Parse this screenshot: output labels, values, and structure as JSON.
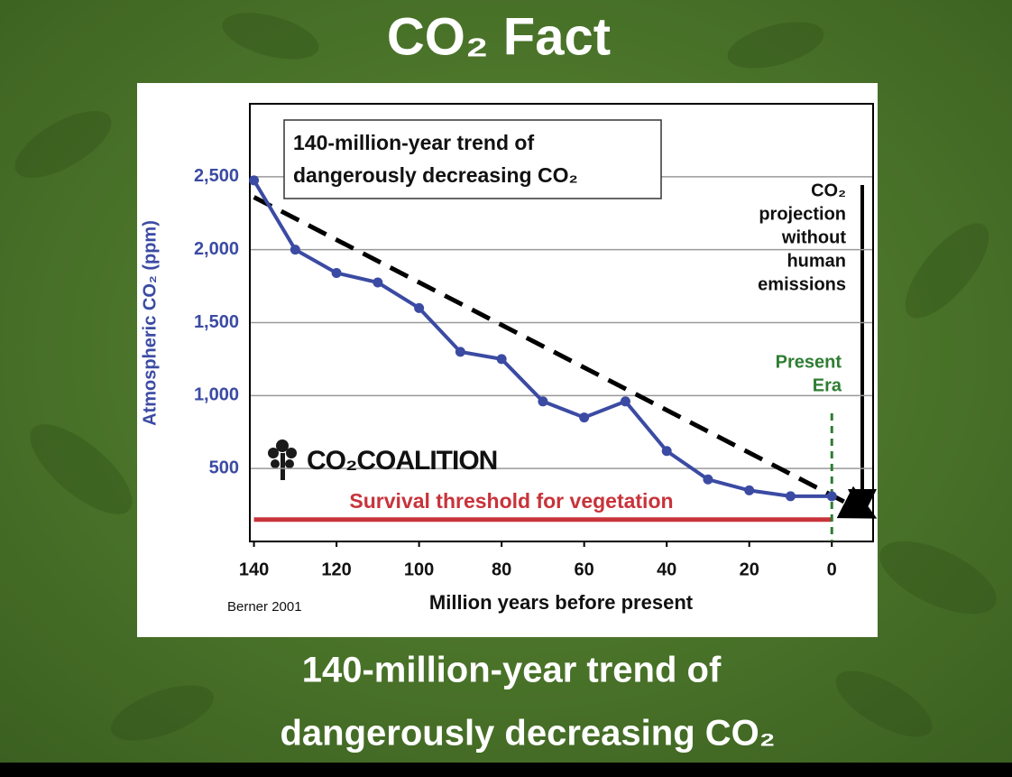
{
  "header": {
    "title": "CO₂ Fact"
  },
  "chart_data": {
    "type": "line",
    "title_lines": [
      "140-million-year trend of",
      "dangerously decreasing CO₂"
    ],
    "ylabel": "Atmospheric CO₂ (ppm)",
    "xlabel": "Million years before present",
    "source": "Berner 2001",
    "logo": "CO₂COALITION",
    "x": [
      140,
      130,
      120,
      110,
      100,
      90,
      80,
      70,
      60,
      50,
      40,
      30,
      20,
      10,
      0
    ],
    "values": [
      2475,
      2000,
      1840,
      1775,
      1600,
      1300,
      1250,
      960,
      850,
      960,
      620,
      425,
      350,
      310,
      310
    ],
    "color": "#3b4ba3",
    "markers": true,
    "xlim": [
      141,
      -10
    ],
    "ylim": [
      0,
      3000
    ],
    "xticks": [
      140,
      120,
      100,
      80,
      60,
      40,
      20,
      0
    ],
    "yticks": [
      {
        "value": 500,
        "label": "500"
      },
      {
        "value": 1000,
        "label": "1,000"
      },
      {
        "value": 1500,
        "label": "1,500"
      },
      {
        "value": 2000,
        "label": "2,000"
      },
      {
        "value": 2500,
        "label": "2,500"
      }
    ],
    "grid": true,
    "trend": {
      "x": [
        140,
        -9
      ],
      "values": [
        2360,
        185
      ],
      "color": "#000000",
      "dashed": true
    },
    "threshold": {
      "label": "Survival threshold for vegetation",
      "value": 150,
      "color": "#c8333a"
    },
    "present_marker": {
      "x": 0,
      "label_lines": [
        "Present",
        "Era"
      ],
      "color": "#2e7d32"
    },
    "projection_lines": [
      "CO₂",
      "projection",
      "without",
      "human",
      "emissions"
    ]
  },
  "caption": {
    "lines": [
      "140-million-year trend of",
      "dangerously decreasing CO₂"
    ]
  }
}
